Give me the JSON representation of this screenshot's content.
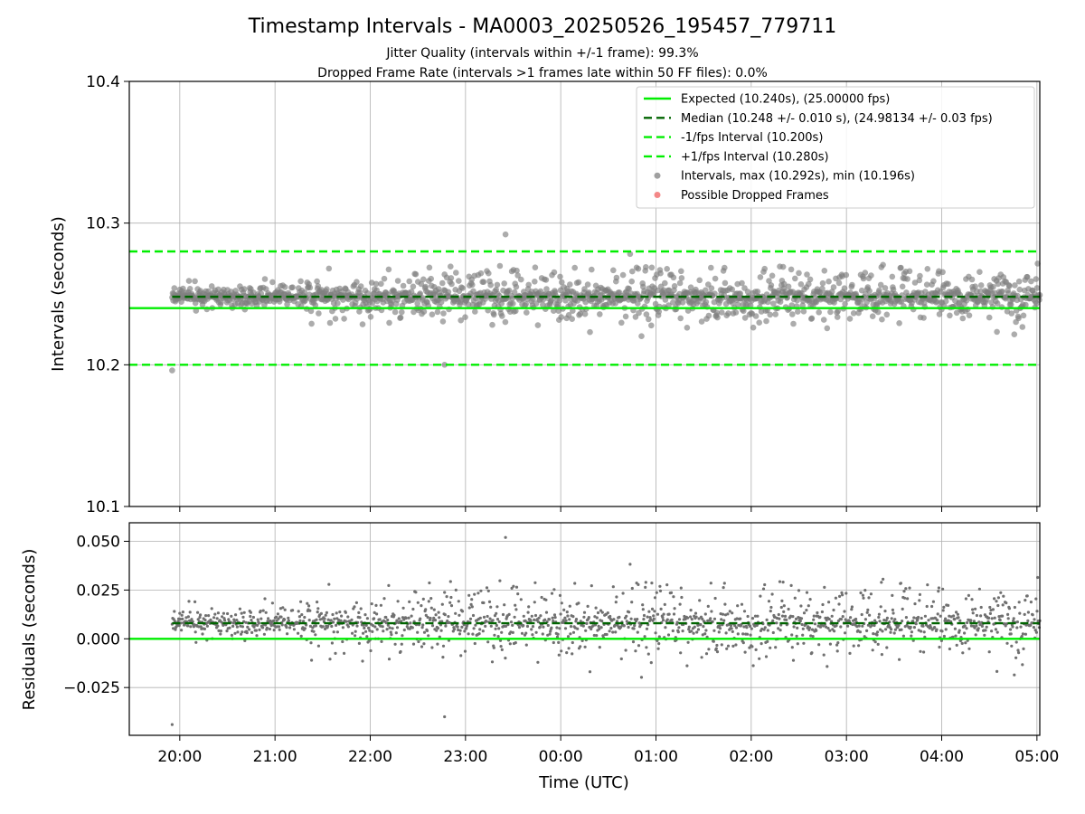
{
  "chart_data": [
    {
      "type": "scatter",
      "title": "Timestamp Intervals - MA0003_20250526_195457_779711",
      "subtitles": [
        "Jitter Quality (intervals within +/-1 frame): 99.3%",
        "Dropped Frame Rate (intervals >1 frames late within 50 FF files): 0.0%"
      ],
      "xlabel": "",
      "ylabel": "Intervals (seconds)",
      "x_unit": "hours since 2025-05-26 20:00 UTC",
      "xlim": [
        -0.53,
        9.03
      ],
      "ylim": [
        10.1,
        10.4
      ],
      "yticks": [
        10.1,
        10.2,
        10.3,
        10.4
      ],
      "ytick_labels": [
        "10.1",
        "10.2",
        "10.3",
        "10.4"
      ],
      "grid": true,
      "legend_position": "top-right",
      "reference_lines": [
        {
          "name": "Expected (10.240s), (25.00000 fps)",
          "y": 10.24,
          "style": "solid",
          "color": "#00ee00"
        },
        {
          "name": "Median (10.248 +/- 0.010 s), (24.98134 +/- 0.03 fps)",
          "y": 10.248,
          "style": "dashed",
          "color": "#006400"
        },
        {
          "name": "-1/fps Interval (10.200s)",
          "y": 10.2,
          "style": "dashed",
          "color": "#00ee00"
        },
        {
          "name": "+1/fps Interval (10.280s)",
          "y": 10.28,
          "style": "dashed",
          "color": "#00ee00"
        }
      ],
      "series": [
        {
          "name": "Intervals, max (10.292s), min (10.196s)",
          "color": "#808080",
          "x_start": -0.08,
          "x_end": 9.03,
          "count": 1600,
          "center": 10.248,
          "spread": 0.01,
          "min": 10.196,
          "max": 10.292,
          "outliers": [
            [
              -0.08,
              10.196
            ],
            [
              3.42,
              10.292
            ],
            [
              2.78,
              10.2
            ]
          ]
        },
        {
          "name": "Possible Dropped Frames",
          "color": "#f06060",
          "values": []
        }
      ]
    },
    {
      "type": "scatter",
      "title": "",
      "xlabel": "Time (UTC)",
      "ylabel": "Residuals (seconds)",
      "x_unit": "hours since 2025-05-26 20:00 UTC",
      "xlim": [
        -0.53,
        9.03
      ],
      "ylim": [
        -0.0495,
        0.0595
      ],
      "yticks": [
        -0.025,
        0.0,
        0.025,
        0.05
      ],
      "ytick_labels": [
        "−0.025",
        "0.000",
        "0.025",
        "0.050"
      ],
      "xticks": [
        0,
        1,
        2,
        3,
        4,
        5,
        6,
        7,
        8,
        9
      ],
      "xtick_labels": [
        "20:00",
        "21:00",
        "22:00",
        "23:00",
        "00:00",
        "01:00",
        "02:00",
        "03:00",
        "04:00",
        "05:00"
      ],
      "grid": true,
      "reference_lines": [
        {
          "name": "Expected",
          "y": 0.0,
          "style": "solid",
          "color": "#00ee00"
        },
        {
          "name": "Median",
          "y": 0.008,
          "style": "dashed",
          "color": "#006400"
        }
      ],
      "series": [
        {
          "name": "Residuals",
          "color": "#707070",
          "derived_from": "intervals minus 10.240"
        }
      ]
    }
  ]
}
